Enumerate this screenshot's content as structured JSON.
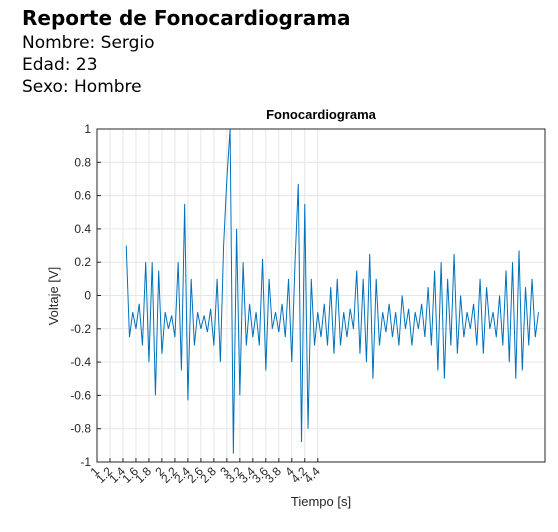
{
  "header": {
    "title": "Reporte de Fonocardiograma",
    "name": "Nombre: Sergio",
    "age": "Edad: 23",
    "sex": "Sexo: Hombre"
  },
  "chart_data": {
    "type": "line",
    "title": "Fonocardiograma",
    "xlabel": "Tiempo [s]",
    "ylabel": "Voltaje [V]",
    "xlim": [
      1,
      7.9
    ],
    "ylim": [
      -1,
      1
    ],
    "xticks": [
      1,
      1.2,
      1.4,
      1.6,
      1.8,
      2,
      2.2,
      2.4,
      2.6,
      2.8,
      3,
      3.2,
      3.4,
      3.6,
      3.8,
      4,
      4.2,
      4.4
    ],
    "yticks": [
      -1,
      -0.8,
      -0.6,
      -0.4,
      -0.2,
      0,
      0.2,
      0.4,
      0.6,
      0.8,
      1
    ],
    "grid": true,
    "x": [
      1.45,
      1.5,
      1.55,
      1.6,
      1.65,
      1.7,
      1.75,
      1.8,
      1.85,
      1.9,
      1.95,
      2.0,
      2.05,
      2.1,
      2.15,
      2.2,
      2.25,
      2.3,
      2.35,
      2.4,
      2.45,
      2.5,
      2.55,
      2.6,
      2.65,
      2.7,
      2.75,
      2.8,
      2.85,
      2.9,
      2.95,
      3.0,
      3.05,
      3.1,
      3.15,
      3.2,
      3.25,
      3.3,
      3.35,
      3.4,
      3.45,
      3.5,
      3.55,
      3.6,
      3.65,
      3.7,
      3.75,
      3.8,
      3.85,
      3.9,
      3.95,
      4.0,
      4.05,
      4.1,
      4.15,
      4.2,
      4.25,
      4.3,
      4.35,
      4.4,
      4.45,
      4.5,
      4.55,
      4.6,
      4.65,
      4.7,
      4.75,
      4.8,
      4.85,
      4.9,
      4.95,
      5.0,
      5.05,
      5.1,
      5.15,
      5.2,
      5.25,
      5.3,
      5.35,
      5.4,
      5.45,
      5.5,
      5.55,
      5.6,
      5.65,
      5.7,
      5.75,
      5.8,
      5.85,
      5.9,
      5.95,
      6.0,
      6.05,
      6.1,
      6.15,
      6.2,
      6.25,
      6.3,
      6.35,
      6.4,
      6.45,
      6.5,
      6.55,
      6.6,
      6.65,
      6.7,
      6.75,
      6.8,
      6.85,
      6.9,
      6.95,
      7.0,
      7.05,
      7.1,
      7.15,
      7.2,
      7.25,
      7.3,
      7.35,
      7.4,
      7.45,
      7.5,
      7.55,
      7.6,
      7.65,
      7.7,
      7.75,
      7.8
    ],
    "series": [
      {
        "color": "#0072bd",
        "values": [
          0.3,
          -0.25,
          -0.1,
          -0.2,
          -0.05,
          -0.3,
          0.2,
          -0.4,
          0.2,
          -0.6,
          0.15,
          -0.35,
          -0.1,
          -0.2,
          -0.12,
          -0.25,
          0.2,
          -0.45,
          0.55,
          -0.63,
          0.1,
          -0.3,
          -0.1,
          -0.2,
          -0.12,
          -0.22,
          -0.08,
          -0.3,
          0.1,
          -0.4,
          0.3,
          0.7,
          1.0,
          -0.95,
          0.4,
          -0.6,
          0.2,
          -0.3,
          -0.05,
          -0.25,
          -0.1,
          -0.3,
          0.22,
          -0.45,
          0.1,
          -0.2,
          -0.1,
          -0.22,
          -0.05,
          -0.25,
          0.1,
          -0.4,
          0.2,
          0.67,
          -0.88,
          0.55,
          -0.8,
          0.1,
          -0.3,
          -0.1,
          -0.25,
          -0.05,
          -0.3,
          0.05,
          -0.35,
          0.1,
          -0.3,
          -0.1,
          -0.25,
          -0.08,
          -0.2,
          0.15,
          -0.35,
          0.1,
          -0.4,
          0.25,
          -0.5,
          0.1,
          -0.3,
          -0.1,
          -0.22,
          -0.05,
          -0.25,
          -0.1,
          -0.3,
          0.0,
          -0.2,
          -0.08,
          -0.3,
          -0.1,
          -0.2,
          -0.05,
          -0.25,
          0.05,
          -0.3,
          0.15,
          -0.45,
          0.2,
          -0.5,
          0.1,
          -0.3,
          0.25,
          -0.35,
          0.0,
          -0.25,
          -0.1,
          -0.2,
          -0.05,
          -0.3,
          0.1,
          -0.35,
          0.05,
          -0.2,
          -0.1,
          -0.25,
          0.0,
          -0.3,
          0.15,
          -0.4,
          0.2,
          -0.5,
          0.27,
          -0.45,
          0.05,
          -0.3,
          0.1,
          -0.25,
          -0.1
        ]
      }
    ]
  }
}
